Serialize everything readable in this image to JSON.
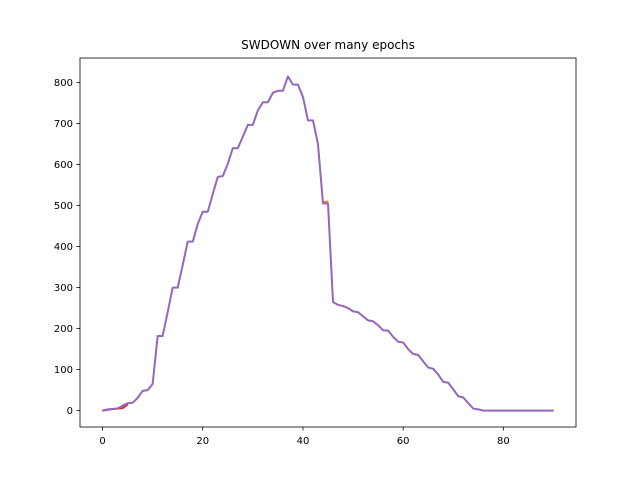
{
  "chart_data": {
    "type": "line",
    "title": "SWDOWN over many epochs",
    "xlabel": "",
    "ylabel": "",
    "xlim": [
      -4.5,
      94.5
    ],
    "ylim": [
      -40,
      860
    ],
    "xticks": [
      0,
      20,
      40,
      60,
      80
    ],
    "yticks": [
      0,
      100,
      200,
      300,
      400,
      500,
      600,
      700,
      800
    ],
    "grid": false,
    "legend": "none",
    "series": [
      {
        "color": "#d62728",
        "x": [
          0,
          2,
          4,
          5
        ],
        "y": [
          0,
          4,
          6,
          15
        ]
      },
      {
        "color": "#ff7f0e",
        "x": [
          44,
          45
        ],
        "y": [
          508,
          510
        ]
      },
      {
        "color": "#9467bd",
        "x": [
          0,
          1,
          2,
          3,
          4,
          5,
          6,
          7,
          8,
          9,
          10,
          11,
          12,
          13,
          14,
          15,
          16,
          17,
          18,
          19,
          20,
          21,
          22,
          23,
          24,
          25,
          26,
          27,
          28,
          29,
          30,
          31,
          32,
          33,
          34,
          35,
          36,
          37,
          38,
          39,
          40,
          41,
          42,
          43,
          44,
          45,
          46,
          47,
          48,
          49,
          50,
          51,
          52,
          53,
          54,
          55,
          56,
          57,
          58,
          59,
          60,
          61,
          62,
          63,
          64,
          65,
          66,
          67,
          68,
          69,
          70,
          71,
          72,
          73,
          74,
          75,
          76,
          77,
          78,
          79,
          80,
          81,
          82,
          83,
          84,
          85,
          86,
          87,
          88,
          89,
          90
        ],
        "y": [
          0,
          3,
          4,
          5,
          12,
          18,
          19,
          31,
          48,
          50,
          65,
          182,
          182,
          240,
          300,
          300,
          355,
          412,
          412,
          455,
          485,
          485,
          528,
          570,
          572,
          602,
          640,
          640,
          668,
          697,
          697,
          732,
          752,
          752,
          775,
          780,
          780,
          815,
          795,
          795,
          765,
          708,
          708,
          650,
          505,
          505,
          265,
          258,
          255,
          250,
          242,
          240,
          230,
          220,
          218,
          208,
          196,
          195,
          180,
          168,
          166,
          150,
          138,
          136,
          120,
          105,
          102,
          88,
          70,
          68,
          52,
          35,
          32,
          18,
          5,
          3,
          0,
          0,
          0,
          0,
          0,
          0,
          0,
          0,
          0,
          0,
          0,
          0,
          0,
          0,
          0
        ]
      }
    ]
  }
}
